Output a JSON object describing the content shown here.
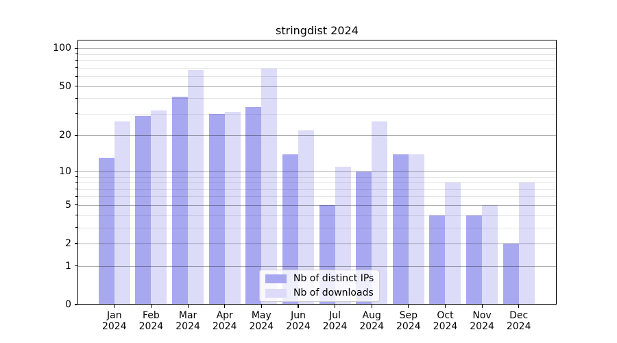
{
  "chart_data": {
    "type": "bar",
    "title": "stringdist 2024",
    "categories": [
      "Jan",
      "Feb",
      "Mar",
      "Apr",
      "May",
      "Jun",
      "Jul",
      "Aug",
      "Sep",
      "Oct",
      "Nov",
      "Dec"
    ],
    "year_label": "2024",
    "series": [
      {
        "name": "Nb of distinct IPs",
        "color": "#a8a8f0",
        "values": [
          13,
          29,
          41,
          30,
          34,
          14,
          5,
          10,
          14,
          4,
          4,
          2
        ]
      },
      {
        "name": "Nb of downloads",
        "color": "#dcdcf8",
        "values": [
          26,
          32,
          67,
          31,
          69,
          22,
          11,
          26,
          14,
          8,
          5,
          8
        ]
      }
    ],
    "xlabel": "",
    "ylabel": "",
    "yscale": "log1p",
    "ylim": [
      0,
      116
    ],
    "yticks": [
      0,
      1,
      2,
      5,
      10,
      20,
      50,
      100
    ],
    "minor_yticks": [
      3,
      4,
      6,
      7,
      8,
      9,
      30,
      40,
      60,
      70,
      80,
      90
    ],
    "grid": true,
    "legend_position": "lower center",
    "colors": {
      "background": "#ffffff",
      "spine": "#000000",
      "major_grid": "#aeaeae",
      "minor_grid": "#e6e6e6",
      "legend_border": "#cccccc"
    }
  }
}
